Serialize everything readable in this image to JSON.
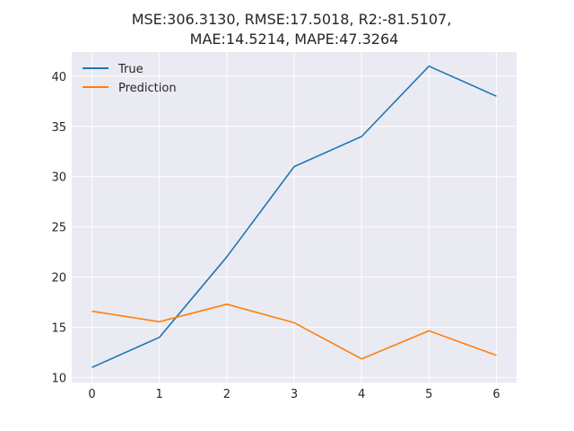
{
  "chart_data": {
    "type": "line",
    "title_line1": "MSE:306.3130, RMSE:17.5018, R2:-81.5107,",
    "title_line2": "MAE:14.5214, MAPE:47.3264",
    "x": [
      0,
      1,
      2,
      3,
      4,
      5,
      6
    ],
    "xticks": [
      "0",
      "1",
      "2",
      "3",
      "4",
      "5",
      "6"
    ],
    "yticks": [
      "10",
      "15",
      "20",
      "25",
      "30",
      "35",
      "40"
    ],
    "xlim": [
      -0.3,
      6.3
    ],
    "ylim": [
      9.5,
      42.4
    ],
    "grid": true,
    "legend_position": "top-left",
    "series": [
      {
        "name": "True",
        "color": "#1f77b4",
        "values": [
          11.0,
          14.0,
          22.0,
          31.0,
          34.0,
          41.0,
          38.0
        ]
      },
      {
        "name": "Prediction",
        "color": "#ff7f0e",
        "values": [
          16.6,
          15.55,
          17.3,
          15.45,
          11.85,
          14.65,
          12.2
        ]
      }
    ]
  }
}
